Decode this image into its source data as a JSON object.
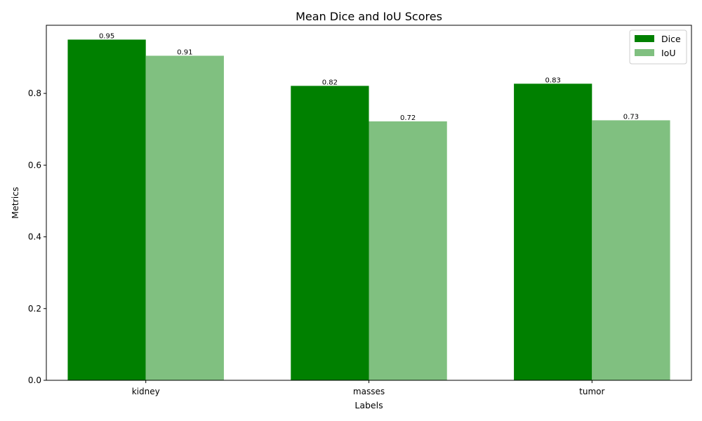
{
  "chart_data": {
    "type": "bar",
    "title": "Mean Dice and IoU Scores",
    "xlabel": "Labels",
    "ylabel": "Metrics",
    "categories": [
      "kidney",
      "masses",
      "tumor"
    ],
    "series": [
      {
        "name": "Dice",
        "values": [
          0.95,
          0.821,
          0.827
        ],
        "labels": [
          "0.95",
          "0.82",
          "0.83"
        ],
        "color": "#008000"
      },
      {
        "name": "IoU",
        "values": [
          0.905,
          0.722,
          0.725
        ],
        "labels": [
          "0.91",
          "0.72",
          "0.73"
        ],
        "color": "#80c080"
      }
    ],
    "ylim": [
      0,
      0.99
    ],
    "yticks": [
      0.0,
      0.2,
      0.4,
      0.6,
      0.8
    ],
    "ytick_labels": [
      "0.0",
      "0.2",
      "0.4",
      "0.6",
      "0.8"
    ],
    "legend_position": "top-right",
    "grid": false
  }
}
